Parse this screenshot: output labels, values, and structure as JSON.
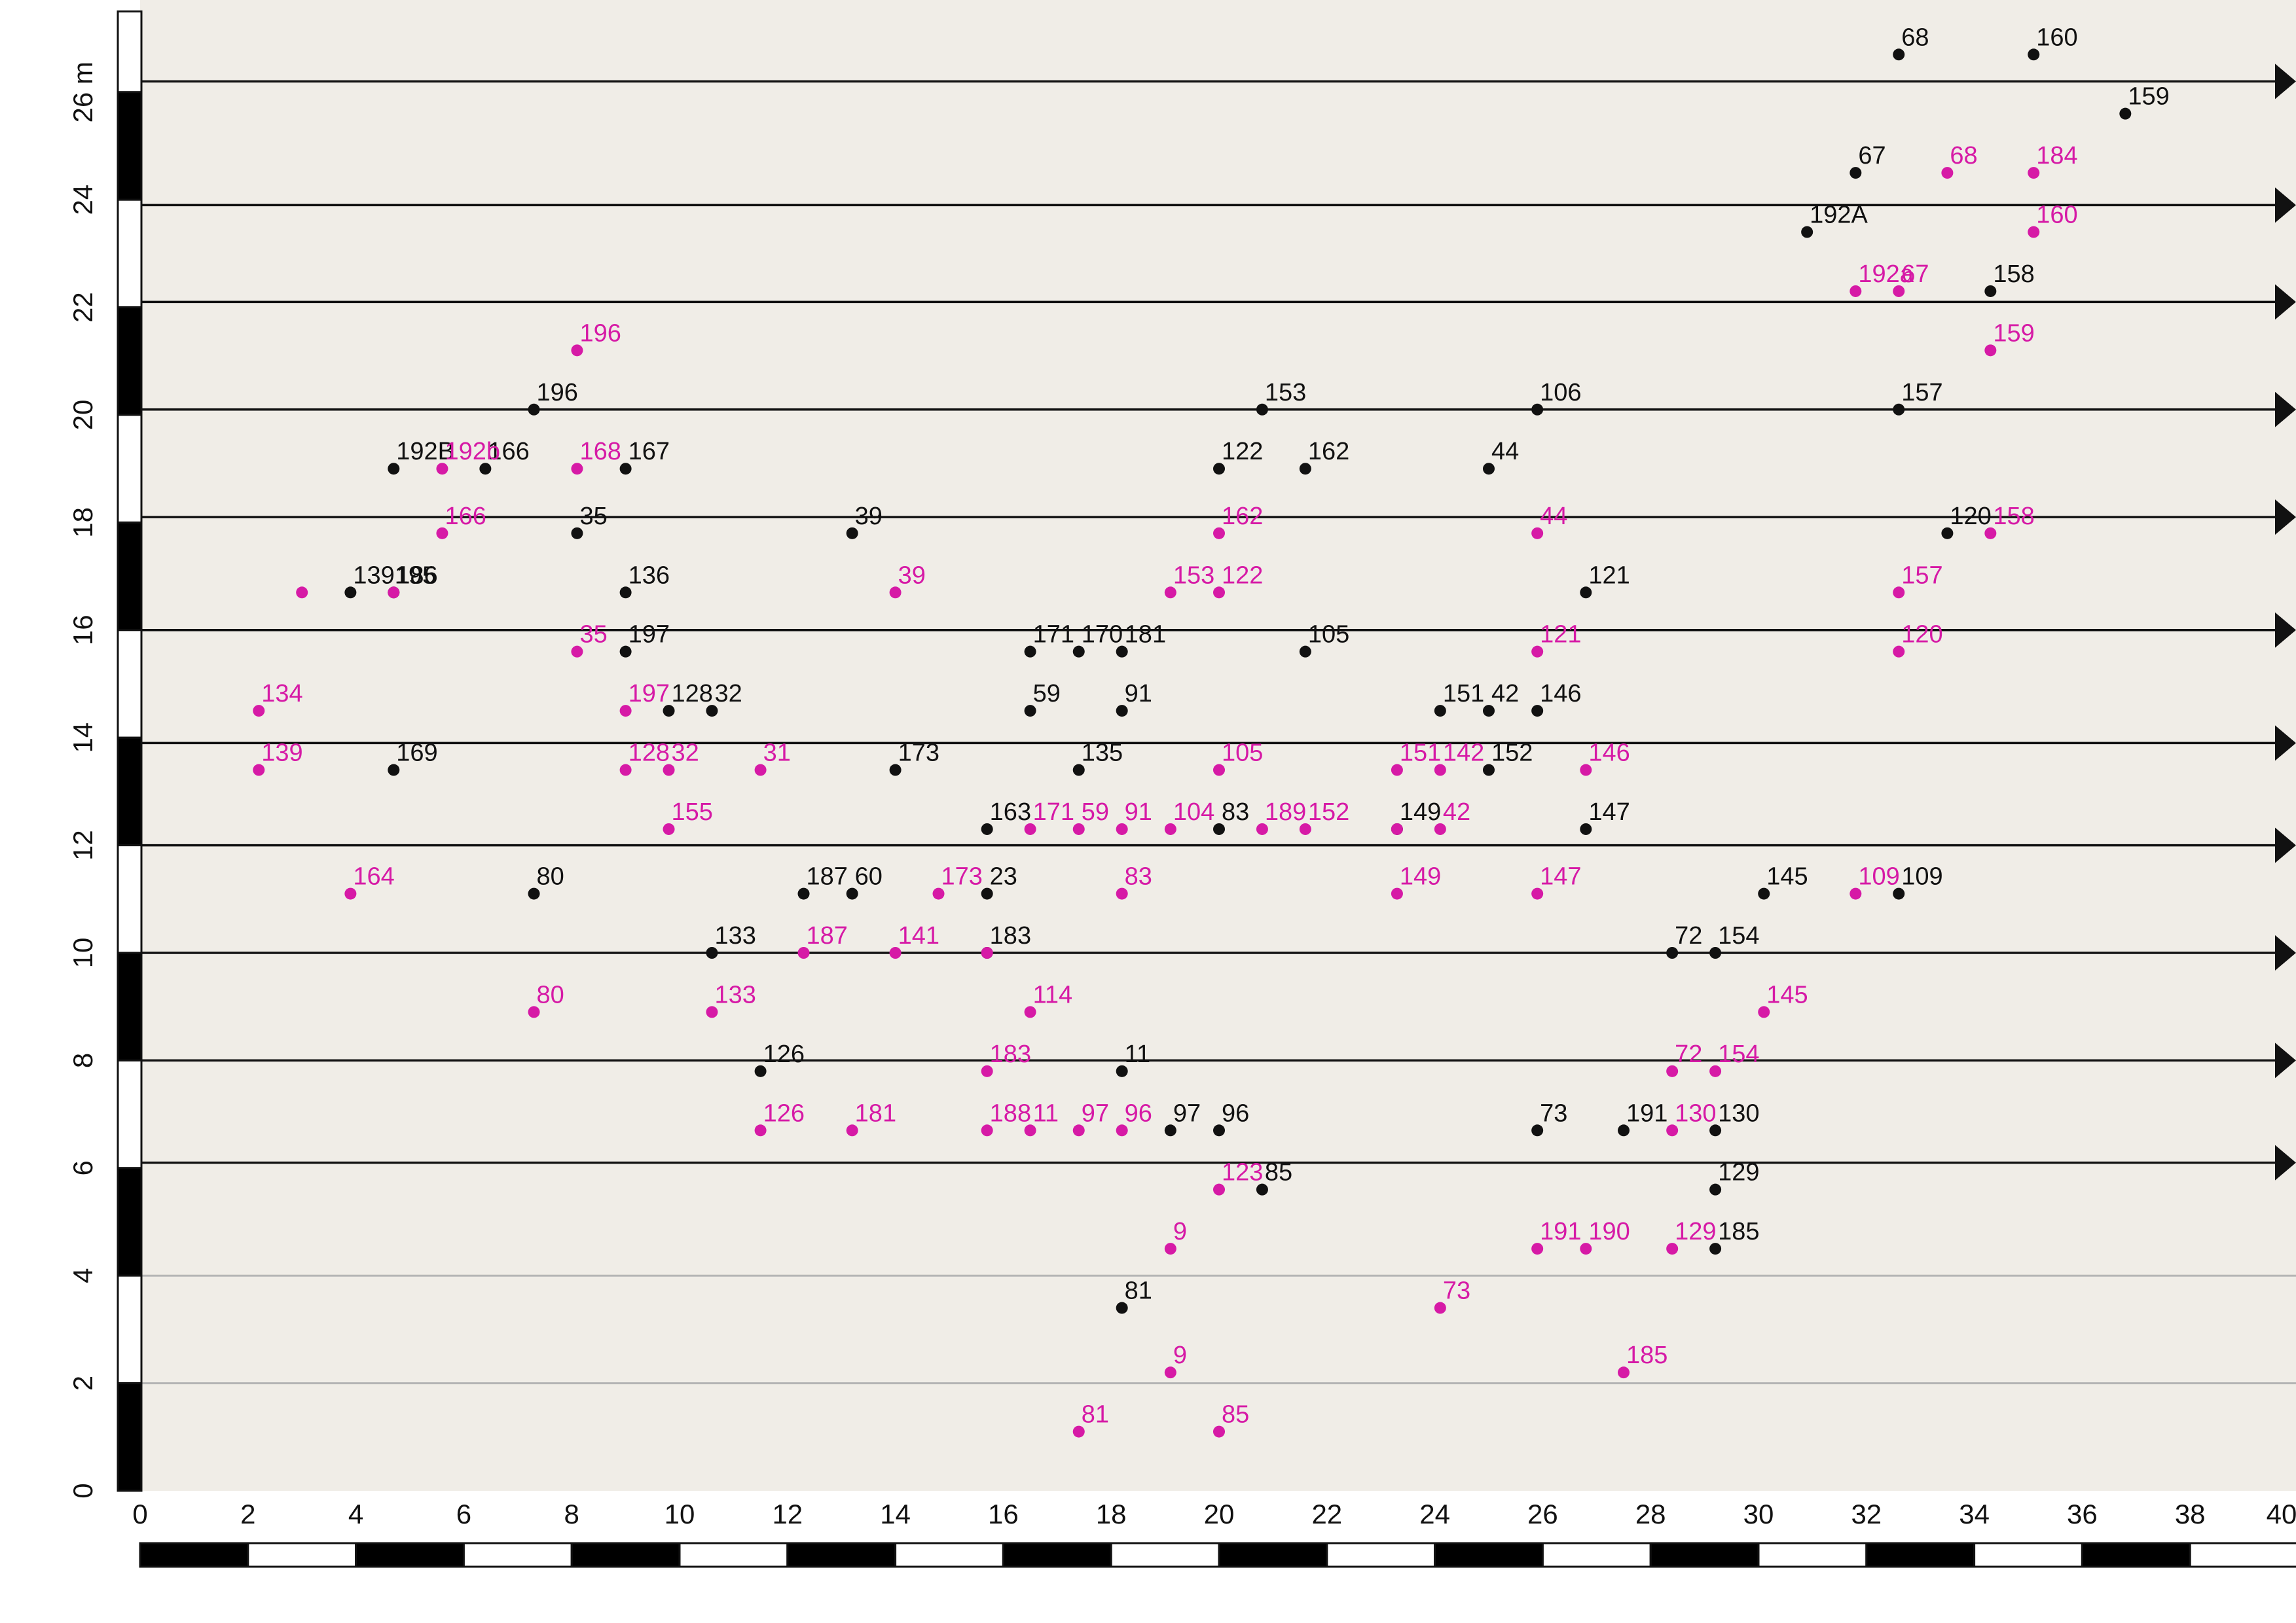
{
  "chart_data": {
    "type": "scatter",
    "title": "",
    "xlabel": "",
    "ylabel": "",
    "xlim": [
      0,
      40
    ],
    "ylim": [
      0,
      27.5
    ],
    "x_ticks": [
      "0",
      "2",
      "4",
      "6",
      "8",
      "10",
      "12",
      "14",
      "16",
      "18",
      "20",
      "22",
      "24",
      "26",
      "28",
      "30",
      "32",
      "34",
      "36",
      "38",
      "40"
    ],
    "y_ticks": [
      "0",
      "2",
      "4",
      "6",
      "8",
      "10",
      "12",
      "14",
      "16",
      "18",
      "20",
      "22",
      "24",
      "26 m"
    ],
    "colors": {
      "background": "#f0ede7",
      "series_black": "#111111",
      "series_magenta": "#d61aa6",
      "gridline": "#b5b5b5"
    },
    "horizontal_arrows_y": [
      6.1,
      8.0,
      10.0,
      12.0,
      13.9,
      16.0,
      18.1,
      20.1,
      22.1,
      23.9,
      26.2
    ],
    "gridlines_y": [
      2,
      4
    ],
    "series": [
      {
        "color": "#111111",
        "points": [
          {
            "x": 32.6,
            "y": 26.7,
            "label": "68"
          },
          {
            "x": 35.1,
            "y": 26.7,
            "label": "160"
          },
          {
            "x": 36.8,
            "y": 25.6,
            "label": "159"
          },
          {
            "x": 31.8,
            "y": 24.5,
            "label": "67"
          },
          {
            "x": 30.9,
            "y": 23.4,
            "label": "192A"
          },
          {
            "x": 34.3,
            "y": 22.3,
            "label": "158"
          },
          {
            "x": 7.3,
            "y": 20.1,
            "label": "196"
          },
          {
            "x": 20.8,
            "y": 20.1,
            "label": "153"
          },
          {
            "x": 25.9,
            "y": 20.1,
            "label": "106"
          },
          {
            "x": 32.6,
            "y": 20.1,
            "label": "157"
          },
          {
            "x": 4.7,
            "y": 19.0,
            "label": "192B"
          },
          {
            "x": 6.4,
            "y": 19.0,
            "label": "166"
          },
          {
            "x": 9.0,
            "y": 19.0,
            "label": "167"
          },
          {
            "x": 20.0,
            "y": 19.0,
            "label": "122"
          },
          {
            "x": 21.6,
            "y": 19.0,
            "label": "162"
          },
          {
            "x": 25.0,
            "y": 19.0,
            "label": "44"
          },
          {
            "x": 8.1,
            "y": 17.8,
            "label": "35"
          },
          {
            "x": 13.2,
            "y": 17.8,
            "label": "39"
          },
          {
            "x": 33.5,
            "y": 17.8,
            "label": "120"
          },
          {
            "x": 3.9,
            "y": 16.7,
            "label": "139195"
          },
          {
            "x": 4.7,
            "y": 16.7,
            "label": "186"
          },
          {
            "x": 9.0,
            "y": 16.7,
            "label": "136"
          },
          {
            "x": 26.8,
            "y": 16.7,
            "label": "121"
          },
          {
            "x": 9.0,
            "y": 15.6,
            "label": "197"
          },
          {
            "x": 16.5,
            "y": 15.6,
            "label": "171"
          },
          {
            "x": 17.4,
            "y": 15.6,
            "label": "170"
          },
          {
            "x": 18.2,
            "y": 15.6,
            "label": "181"
          },
          {
            "x": 21.6,
            "y": 15.6,
            "label": "105"
          },
          {
            "x": 9.8,
            "y": 14.5,
            "label": "128"
          },
          {
            "x": 10.6,
            "y": 14.5,
            "label": "32"
          },
          {
            "x": 16.5,
            "y": 14.5,
            "label": "59"
          },
          {
            "x": 18.2,
            "y": 14.5,
            "label": "91"
          },
          {
            "x": 24.1,
            "y": 14.5,
            "label": "151"
          },
          {
            "x": 25.0,
            "y": 14.5,
            "label": "42"
          },
          {
            "x": 25.9,
            "y": 14.5,
            "label": "146"
          },
          {
            "x": 4.7,
            "y": 13.4,
            "label": "169"
          },
          {
            "x": 14.0,
            "y": 13.4,
            "label": "173"
          },
          {
            "x": 17.4,
            "y": 13.4,
            "label": "135"
          },
          {
            "x": 25.0,
            "y": 13.4,
            "label": "152"
          },
          {
            "x": 15.7,
            "y": 12.3,
            "label": "163"
          },
          {
            "x": 20.0,
            "y": 12.3,
            "label": "83"
          },
          {
            "x": 23.3,
            "y": 12.3,
            "label": "149"
          },
          {
            "x": 26.8,
            "y": 12.3,
            "label": "147"
          },
          {
            "x": 7.3,
            "y": 11.1,
            "label": "80"
          },
          {
            "x": 12.3,
            "y": 11.1,
            "label": "187"
          },
          {
            "x": 13.2,
            "y": 11.1,
            "label": "60"
          },
          {
            "x": 15.7,
            "y": 11.1,
            "label": "23"
          },
          {
            "x": 30.1,
            "y": 11.1,
            "label": "145"
          },
          {
            "x": 32.6,
            "y": 11.1,
            "label": "109"
          },
          {
            "x": 10.6,
            "y": 10.0,
            "label": "133"
          },
          {
            "x": 15.7,
            "y": 10.0,
            "label": "183"
          },
          {
            "x": 28.4,
            "y": 10.0,
            "label": "72"
          },
          {
            "x": 29.2,
            "y": 10.0,
            "label": "154"
          },
          {
            "x": 11.5,
            "y": 7.8,
            "label": "126"
          },
          {
            "x": 18.2,
            "y": 7.8,
            "label": "11"
          },
          {
            "x": 19.1,
            "y": 6.7,
            "label": "97"
          },
          {
            "x": 20.0,
            "y": 6.7,
            "label": "96"
          },
          {
            "x": 25.9,
            "y": 6.7,
            "label": "73"
          },
          {
            "x": 27.5,
            "y": 6.7,
            "label": "191"
          },
          {
            "x": 29.2,
            "y": 6.7,
            "label": "130"
          },
          {
            "x": 20.8,
            "y": 5.6,
            "label": "85"
          },
          {
            "x": 29.2,
            "y": 5.6,
            "label": "129"
          },
          {
            "x": 29.2,
            "y": 4.5,
            "label": "185"
          },
          {
            "x": 18.2,
            "y": 3.4,
            "label": "81"
          }
        ]
      },
      {
        "color": "#d61aa6",
        "points": [
          {
            "x": 33.5,
            "y": 24.5,
            "label": "68"
          },
          {
            "x": 35.1,
            "y": 24.5,
            "label": "184"
          },
          {
            "x": 35.1,
            "y": 23.4,
            "label": "160"
          },
          {
            "x": 31.8,
            "y": 22.3,
            "label": "192a"
          },
          {
            "x": 32.6,
            "y": 22.3,
            "label": "67"
          },
          {
            "x": 34.3,
            "y": 21.2,
            "label": "159"
          },
          {
            "x": 8.1,
            "y": 21.2,
            "label": "196"
          },
          {
            "x": 5.6,
            "y": 19.0,
            "label": "192b"
          },
          {
            "x": 8.1,
            "y": 19.0,
            "label": "168"
          },
          {
            "x": 5.6,
            "y": 17.8,
            "label": "166"
          },
          {
            "x": 20.0,
            "y": 17.8,
            "label": "162"
          },
          {
            "x": 25.9,
            "y": 17.8,
            "label": "44"
          },
          {
            "x": 34.3,
            "y": 17.8,
            "label": "158"
          },
          {
            "x": 3.0,
            "y": 16.7,
            "label": ""
          },
          {
            "x": 4.7,
            "y": 16.7,
            "label": ""
          },
          {
            "x": 14.0,
            "y": 16.7,
            "label": "39"
          },
          {
            "x": 19.1,
            "y": 16.7,
            "label": "153"
          },
          {
            "x": 20.0,
            "y": 16.7,
            "label": "122"
          },
          {
            "x": 32.6,
            "y": 16.7,
            "label": "157"
          },
          {
            "x": 8.1,
            "y": 15.6,
            "label": "35"
          },
          {
            "x": 25.9,
            "y": 15.6,
            "label": "121"
          },
          {
            "x": 32.6,
            "y": 15.6,
            "label": "120"
          },
          {
            "x": 2.2,
            "y": 14.5,
            "label": "134"
          },
          {
            "x": 9.0,
            "y": 14.5,
            "label": "197"
          },
          {
            "x": 2.2,
            "y": 13.4,
            "label": "139"
          },
          {
            "x": 9.0,
            "y": 13.4,
            "label": "128"
          },
          {
            "x": 9.8,
            "y": 13.4,
            "label": "32"
          },
          {
            "x": 11.5,
            "y": 13.4,
            "label": "31"
          },
          {
            "x": 20.0,
            "y": 13.4,
            "label": "105"
          },
          {
            "x": 23.3,
            "y": 13.4,
            "label": "151"
          },
          {
            "x": 24.1,
            "y": 13.4,
            "label": "142"
          },
          {
            "x": 26.8,
            "y": 13.4,
            "label": "146"
          },
          {
            "x": 9.8,
            "y": 12.3,
            "label": "155"
          },
          {
            "x": 16.5,
            "y": 12.3,
            "label": "171"
          },
          {
            "x": 17.4,
            "y": 12.3,
            "label": "59"
          },
          {
            "x": 18.2,
            "y": 12.3,
            "label": "91"
          },
          {
            "x": 19.1,
            "y": 12.3,
            "label": "104"
          },
          {
            "x": 20.8,
            "y": 12.3,
            "label": "189"
          },
          {
            "x": 21.6,
            "y": 12.3,
            "label": "152"
          },
          {
            "x": 23.3,
            "y": 12.3,
            "label": ""
          },
          {
            "x": 24.1,
            "y": 12.3,
            "label": "42"
          },
          {
            "x": 3.9,
            "y": 11.1,
            "label": "164"
          },
          {
            "x": 14.8,
            "y": 11.1,
            "label": "173"
          },
          {
            "x": 18.2,
            "y": 11.1,
            "label": "83"
          },
          {
            "x": 23.3,
            "y": 11.1,
            "label": "149"
          },
          {
            "x": 25.9,
            "y": 11.1,
            "label": "147"
          },
          {
            "x": 31.8,
            "y": 11.1,
            "label": "109"
          },
          {
            "x": 12.3,
            "y": 10.0,
            "label": "187"
          },
          {
            "x": 14.0,
            "y": 10.0,
            "label": "141"
          },
          {
            "x": 15.7,
            "y": 10.0,
            "label": ""
          },
          {
            "x": 7.3,
            "y": 8.9,
            "label": "80"
          },
          {
            "x": 10.6,
            "y": 8.9,
            "label": "133"
          },
          {
            "x": 16.5,
            "y": 8.9,
            "label": "114"
          },
          {
            "x": 30.1,
            "y": 8.9,
            "label": "145"
          },
          {
            "x": 15.7,
            "y": 7.8,
            "label": "183"
          },
          {
            "x": 28.4,
            "y": 7.8,
            "label": "72"
          },
          {
            "x": 29.2,
            "y": 7.8,
            "label": "154"
          },
          {
            "x": 11.5,
            "y": 6.7,
            "label": "126"
          },
          {
            "x": 13.2,
            "y": 6.7,
            "label": "181"
          },
          {
            "x": 15.7,
            "y": 6.7,
            "label": "188"
          },
          {
            "x": 16.5,
            "y": 6.7,
            "label": "11"
          },
          {
            "x": 17.4,
            "y": 6.7,
            "label": "97"
          },
          {
            "x": 18.2,
            "y": 6.7,
            "label": "96"
          },
          {
            "x": 28.4,
            "y": 6.7,
            "label": "130"
          },
          {
            "x": 20.0,
            "y": 5.6,
            "label": "123"
          },
          {
            "x": 19.1,
            "y": 4.5,
            "label": "9"
          },
          {
            "x": 25.9,
            "y": 4.5,
            "label": "191"
          },
          {
            "x": 26.8,
            "y": 4.5,
            "label": "190"
          },
          {
            "x": 28.4,
            "y": 4.5,
            "label": "129"
          },
          {
            "x": 24.1,
            "y": 3.4,
            "label": "73"
          },
          {
            "x": 19.1,
            "y": 2.2,
            "label": "9"
          },
          {
            "x": 27.5,
            "y": 2.2,
            "label": "185"
          },
          {
            "x": 17.4,
            "y": 1.1,
            "label": "81"
          },
          {
            "x": 20.0,
            "y": 1.1,
            "label": "85"
          }
        ]
      }
    ]
  }
}
